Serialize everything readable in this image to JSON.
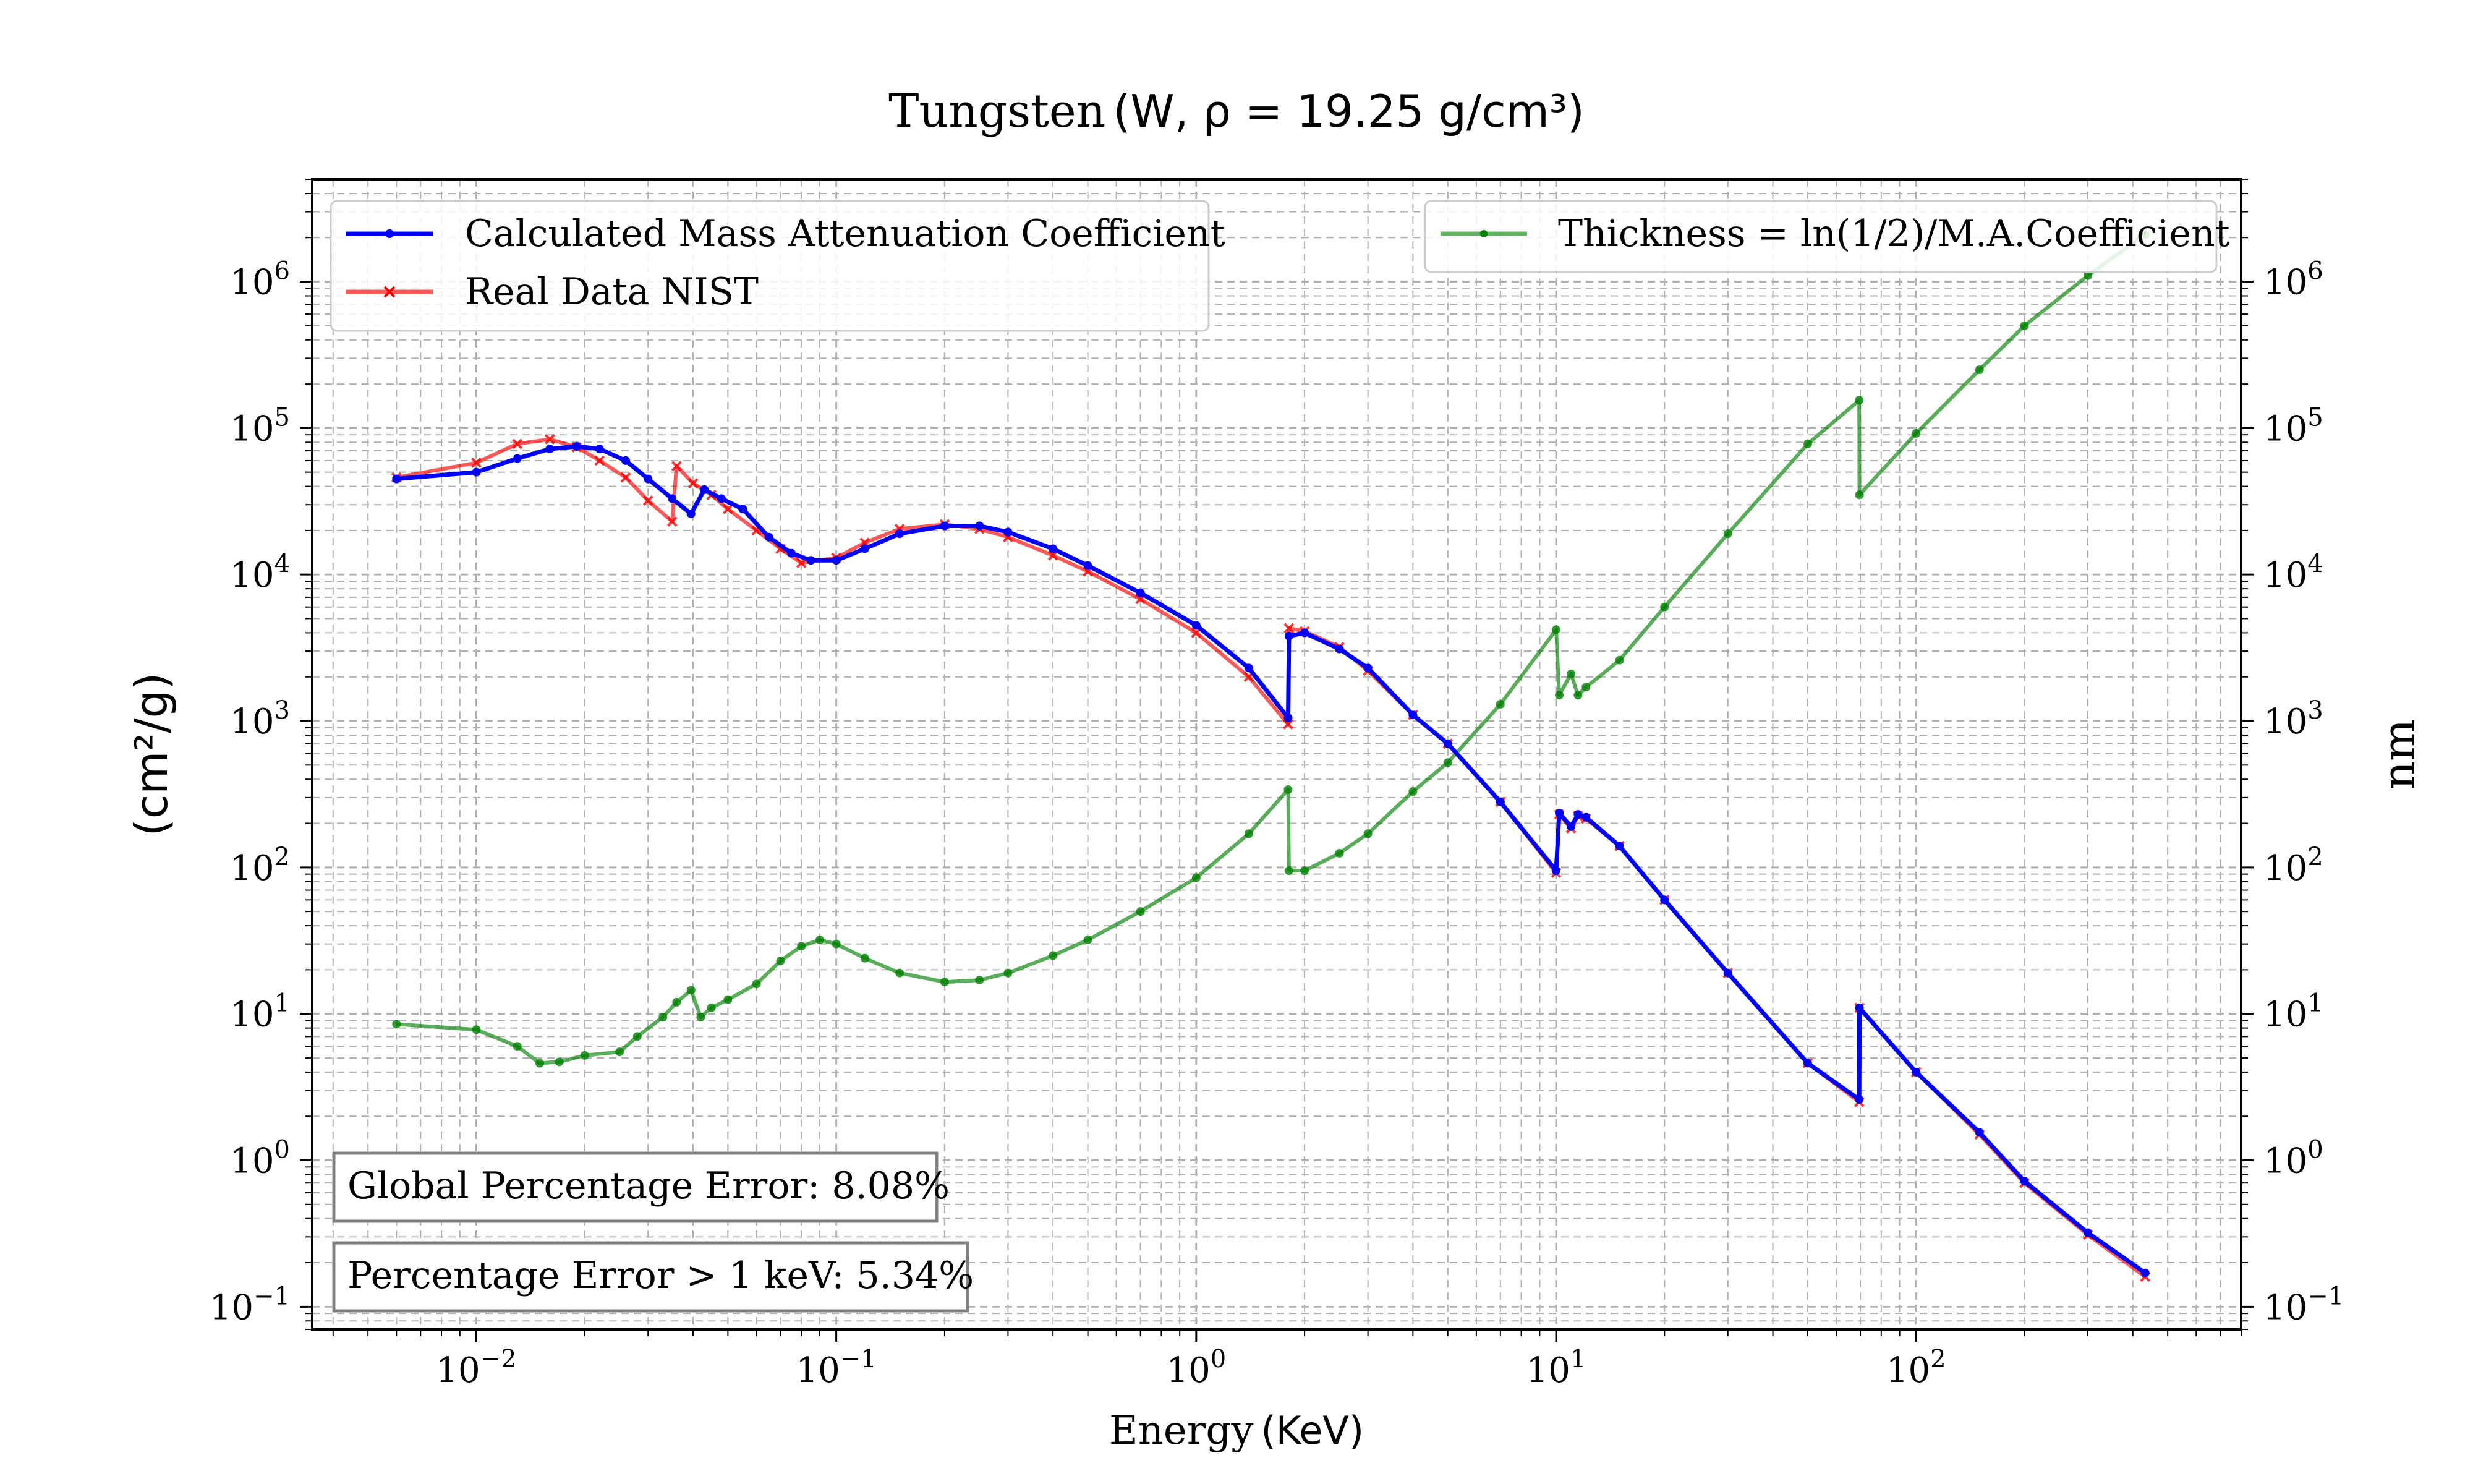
{
  "chart_data": {
    "type": "line",
    "title_prefix": "Tungsten",
    "title_formula": "(W,  ρ = 19.25 g/cm³)",
    "xlabel_prefix": "Energy",
    "xlabel_unit": "(KeV)",
    "ylabel_left": "(cm²/g)",
    "ylabel_right": "nm",
    "xscale": "log",
    "yscale_left": "log",
    "yscale_right": "log",
    "xlim": [
      0.0035,
      800
    ],
    "ylim_left": [
      0.07,
      5000000
    ],
    "ylim_right": [
      0.07,
      5000000
    ],
    "grid": "both, dashed",
    "x_tick_labels": [
      {
        "base": "10",
        "exp": "−2",
        "value": 0.01
      },
      {
        "base": "10",
        "exp": "−1",
        "value": 0.1
      },
      {
        "base": "10",
        "exp": "0",
        "value": 1
      },
      {
        "base": "10",
        "exp": "1",
        "value": 10
      },
      {
        "base": "10",
        "exp": "2",
        "value": 100
      }
    ],
    "y_tick_labels": [
      {
        "base": "10",
        "exp": "−1",
        "value": 0.1
      },
      {
        "base": "10",
        "exp": "0",
        "value": 1
      },
      {
        "base": "10",
        "exp": "1",
        "value": 10
      },
      {
        "base": "10",
        "exp": "2",
        "value": 100
      },
      {
        "base": "10",
        "exp": "3",
        "value": 1000
      },
      {
        "base": "10",
        "exp": "4",
        "value": 10000
      },
      {
        "base": "10",
        "exp": "5",
        "value": 100000
      },
      {
        "base": "10",
        "exp": "6",
        "value": 1000000
      }
    ],
    "legend_left_position": "upper left",
    "legend_right_position": "upper right",
    "series": [
      {
        "name": "Calculated Mass Attenuation Coefficient",
        "color": "#0000ff",
        "marker": "dot",
        "axis": "left",
        "points": [
          [
            0.006,
            45000
          ],
          [
            0.01,
            50000
          ],
          [
            0.013,
            62000
          ],
          [
            0.016,
            72000
          ],
          [
            0.019,
            75000
          ],
          [
            0.022,
            72000
          ],
          [
            0.026,
            60000
          ],
          [
            0.03,
            45000
          ],
          [
            0.035,
            33000
          ],
          [
            0.0395,
            26000
          ],
          [
            0.043,
            38000
          ],
          [
            0.048,
            33000
          ],
          [
            0.055,
            28000
          ],
          [
            0.065,
            18000
          ],
          [
            0.075,
            14000
          ],
          [
            0.085,
            12500
          ],
          [
            0.1,
            12500
          ],
          [
            0.12,
            15000
          ],
          [
            0.15,
            19000
          ],
          [
            0.2,
            21500
          ],
          [
            0.25,
            21500
          ],
          [
            0.3,
            19500
          ],
          [
            0.4,
            15000
          ],
          [
            0.5,
            11500
          ],
          [
            0.7,
            7500
          ],
          [
            1.0,
            4500
          ],
          [
            1.4,
            2300
          ],
          [
            1.8,
            1050
          ],
          [
            1.81,
            3800
          ],
          [
            2.0,
            4000
          ],
          [
            2.5,
            3100
          ],
          [
            3.0,
            2300
          ],
          [
            4.0,
            1100
          ],
          [
            5.0,
            700
          ],
          [
            7.0,
            280
          ],
          [
            10.0,
            95
          ],
          [
            10.2,
            235
          ],
          [
            11.0,
            190
          ],
          [
            11.5,
            230
          ],
          [
            12.1,
            220
          ],
          [
            15.0,
            140
          ],
          [
            20.0,
            60
          ],
          [
            30.0,
            19
          ],
          [
            50.0,
            4.6
          ],
          [
            69.5,
            2.6
          ],
          [
            69.6,
            11
          ],
          [
            100.0,
            4.0
          ],
          [
            150.0,
            1.55
          ],
          [
            200.0,
            0.72
          ],
          [
            300.0,
            0.32
          ],
          [
            433.0,
            0.17
          ]
        ]
      },
      {
        "name": "Real Data NIST",
        "color": "#ff0000",
        "marker": "x",
        "axis": "left",
        "points": [
          [
            0.006,
            46000
          ],
          [
            0.01,
            58000
          ],
          [
            0.013,
            78000
          ],
          [
            0.016,
            84000
          ],
          [
            0.019,
            74000
          ],
          [
            0.022,
            60000
          ],
          [
            0.026,
            46000
          ],
          [
            0.03,
            32000
          ],
          [
            0.035,
            23000
          ],
          [
            0.036,
            55000
          ],
          [
            0.04,
            42000
          ],
          [
            0.045,
            35000
          ],
          [
            0.05,
            28000
          ],
          [
            0.06,
            20000
          ],
          [
            0.07,
            15000
          ],
          [
            0.08,
            12000
          ],
          [
            0.1,
            13000
          ],
          [
            0.12,
            16500
          ],
          [
            0.15,
            20500
          ],
          [
            0.2,
            22000
          ],
          [
            0.25,
            20500
          ],
          [
            0.3,
            18000
          ],
          [
            0.4,
            13500
          ],
          [
            0.5,
            10500
          ],
          [
            0.7,
            6800
          ],
          [
            1.0,
            4000
          ],
          [
            1.4,
            2000
          ],
          [
            1.8,
            950
          ],
          [
            1.81,
            4300
          ],
          [
            2.0,
            4100
          ],
          [
            2.5,
            3200
          ],
          [
            3.0,
            2200
          ],
          [
            4.0,
            1100
          ],
          [
            5.0,
            700
          ],
          [
            7.0,
            280
          ],
          [
            10.0,
            92
          ],
          [
            10.2,
            230
          ],
          [
            11.0,
            185
          ],
          [
            11.5,
            225
          ],
          [
            12.1,
            215
          ],
          [
            15.0,
            140
          ],
          [
            20.0,
            60
          ],
          [
            30.0,
            19
          ],
          [
            50.0,
            4.6
          ],
          [
            69.5,
            2.5
          ],
          [
            69.6,
            11
          ],
          [
            100.0,
            4.0
          ],
          [
            150.0,
            1.5
          ],
          [
            200.0,
            0.7
          ],
          [
            300.0,
            0.31
          ],
          [
            433.0,
            0.16
          ]
        ]
      },
      {
        "name": "Thickness = ln(1/2)/M.A.Coefficient",
        "color": "#008000",
        "marker": "dot",
        "axis": "right",
        "points": [
          [
            0.006,
            8.5
          ],
          [
            0.01,
            7.8
          ],
          [
            0.013,
            6.0
          ],
          [
            0.015,
            4.6
          ],
          [
            0.017,
            4.7
          ],
          [
            0.02,
            5.2
          ],
          [
            0.025,
            5.5
          ],
          [
            0.028,
            7.0
          ],
          [
            0.033,
            9.5
          ],
          [
            0.036,
            12.0
          ],
          [
            0.0395,
            14.5
          ],
          [
            0.042,
            9.5
          ],
          [
            0.045,
            11.0
          ],
          [
            0.05,
            12.5
          ],
          [
            0.06,
            16.0
          ],
          [
            0.07,
            23.0
          ],
          [
            0.08,
            29.0
          ],
          [
            0.09,
            32.0
          ],
          [
            0.1,
            30.0
          ],
          [
            0.12,
            24.0
          ],
          [
            0.15,
            19.0
          ],
          [
            0.2,
            16.5
          ],
          [
            0.25,
            17.0
          ],
          [
            0.3,
            19.0
          ],
          [
            0.4,
            25.0
          ],
          [
            0.5,
            32.0
          ],
          [
            0.7,
            50.0
          ],
          [
            1.0,
            85.0
          ],
          [
            1.4,
            170.0
          ],
          [
            1.8,
            340.0
          ],
          [
            1.81,
            95.0
          ],
          [
            2.0,
            95.0
          ],
          [
            2.5,
            125.0
          ],
          [
            3.0,
            170.0
          ],
          [
            4.0,
            330.0
          ],
          [
            5.0,
            520.0
          ],
          [
            7.0,
            1300.0
          ],
          [
            10.0,
            4200.0
          ],
          [
            10.2,
            1500.0
          ],
          [
            11.0,
            2100.0
          ],
          [
            11.5,
            1500.0
          ],
          [
            12.1,
            1700.0
          ],
          [
            15.0,
            2600.0
          ],
          [
            20.0,
            6000.0
          ],
          [
            30.0,
            19000.0
          ],
          [
            50.0,
            78000.0
          ],
          [
            69.5,
            155000.0
          ],
          [
            69.6,
            35000.0
          ],
          [
            100.0,
            92000.0
          ],
          [
            150.0,
            250000.0
          ],
          [
            200.0,
            500000.0
          ],
          [
            300.0,
            1100000.0
          ],
          [
            433.0,
            2100000.0
          ]
        ]
      }
    ],
    "annotations": [
      {
        "text": "Global Percentage Error: 8.08%"
      },
      {
        "text": "Percentage Error > 1 keV: 5.34%"
      }
    ]
  }
}
